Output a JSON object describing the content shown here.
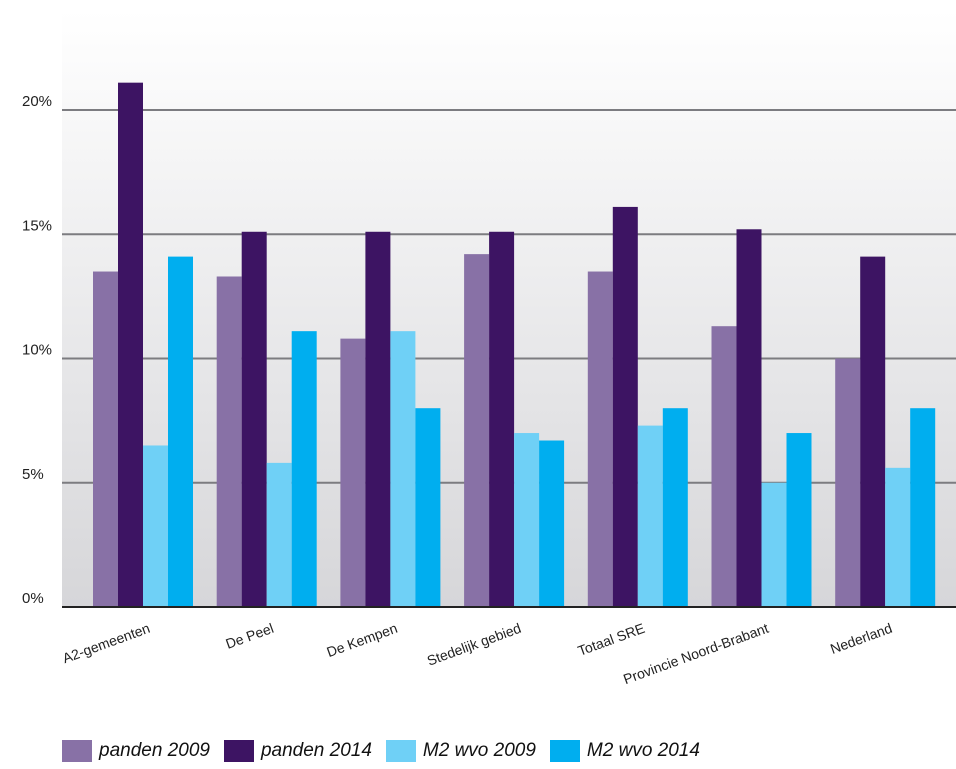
{
  "chart_data": {
    "type": "bar",
    "categories": [
      "A2-gemeenten",
      "De Peel",
      "De Kempen",
      "Stedelijk gebied",
      "Totaal SRE",
      "Provincie Noord-Brabant",
      "Nederland"
    ],
    "series": [
      {
        "name": "panden 2009",
        "color": "#8871a6",
        "values": [
          13.5,
          13.3,
          10.8,
          14.2,
          13.5,
          11.3,
          10.0
        ]
      },
      {
        "name": "panden 2014",
        "color": "#3d1463",
        "values": [
          21.1,
          15.1,
          15.1,
          15.1,
          16.1,
          15.2,
          14.1
        ]
      },
      {
        "name": "M2 wvo 2009",
        "color": "#6fd0f6",
        "values": [
          6.5,
          5.8,
          11.1,
          7.0,
          7.3,
          5.0,
          5.6
        ]
      },
      {
        "name": "M2 wvo 2014",
        "color": "#00aeef",
        "values": [
          14.1,
          11.1,
          8.0,
          6.7,
          8.0,
          7.0,
          8.0
        ]
      }
    ],
    "yticks": [
      "0%",
      "5%",
      "10%",
      "15%",
      "20%"
    ],
    "ylim": [
      0,
      24
    ],
    "grid": true,
    "legend_position": "bottom-left"
  }
}
